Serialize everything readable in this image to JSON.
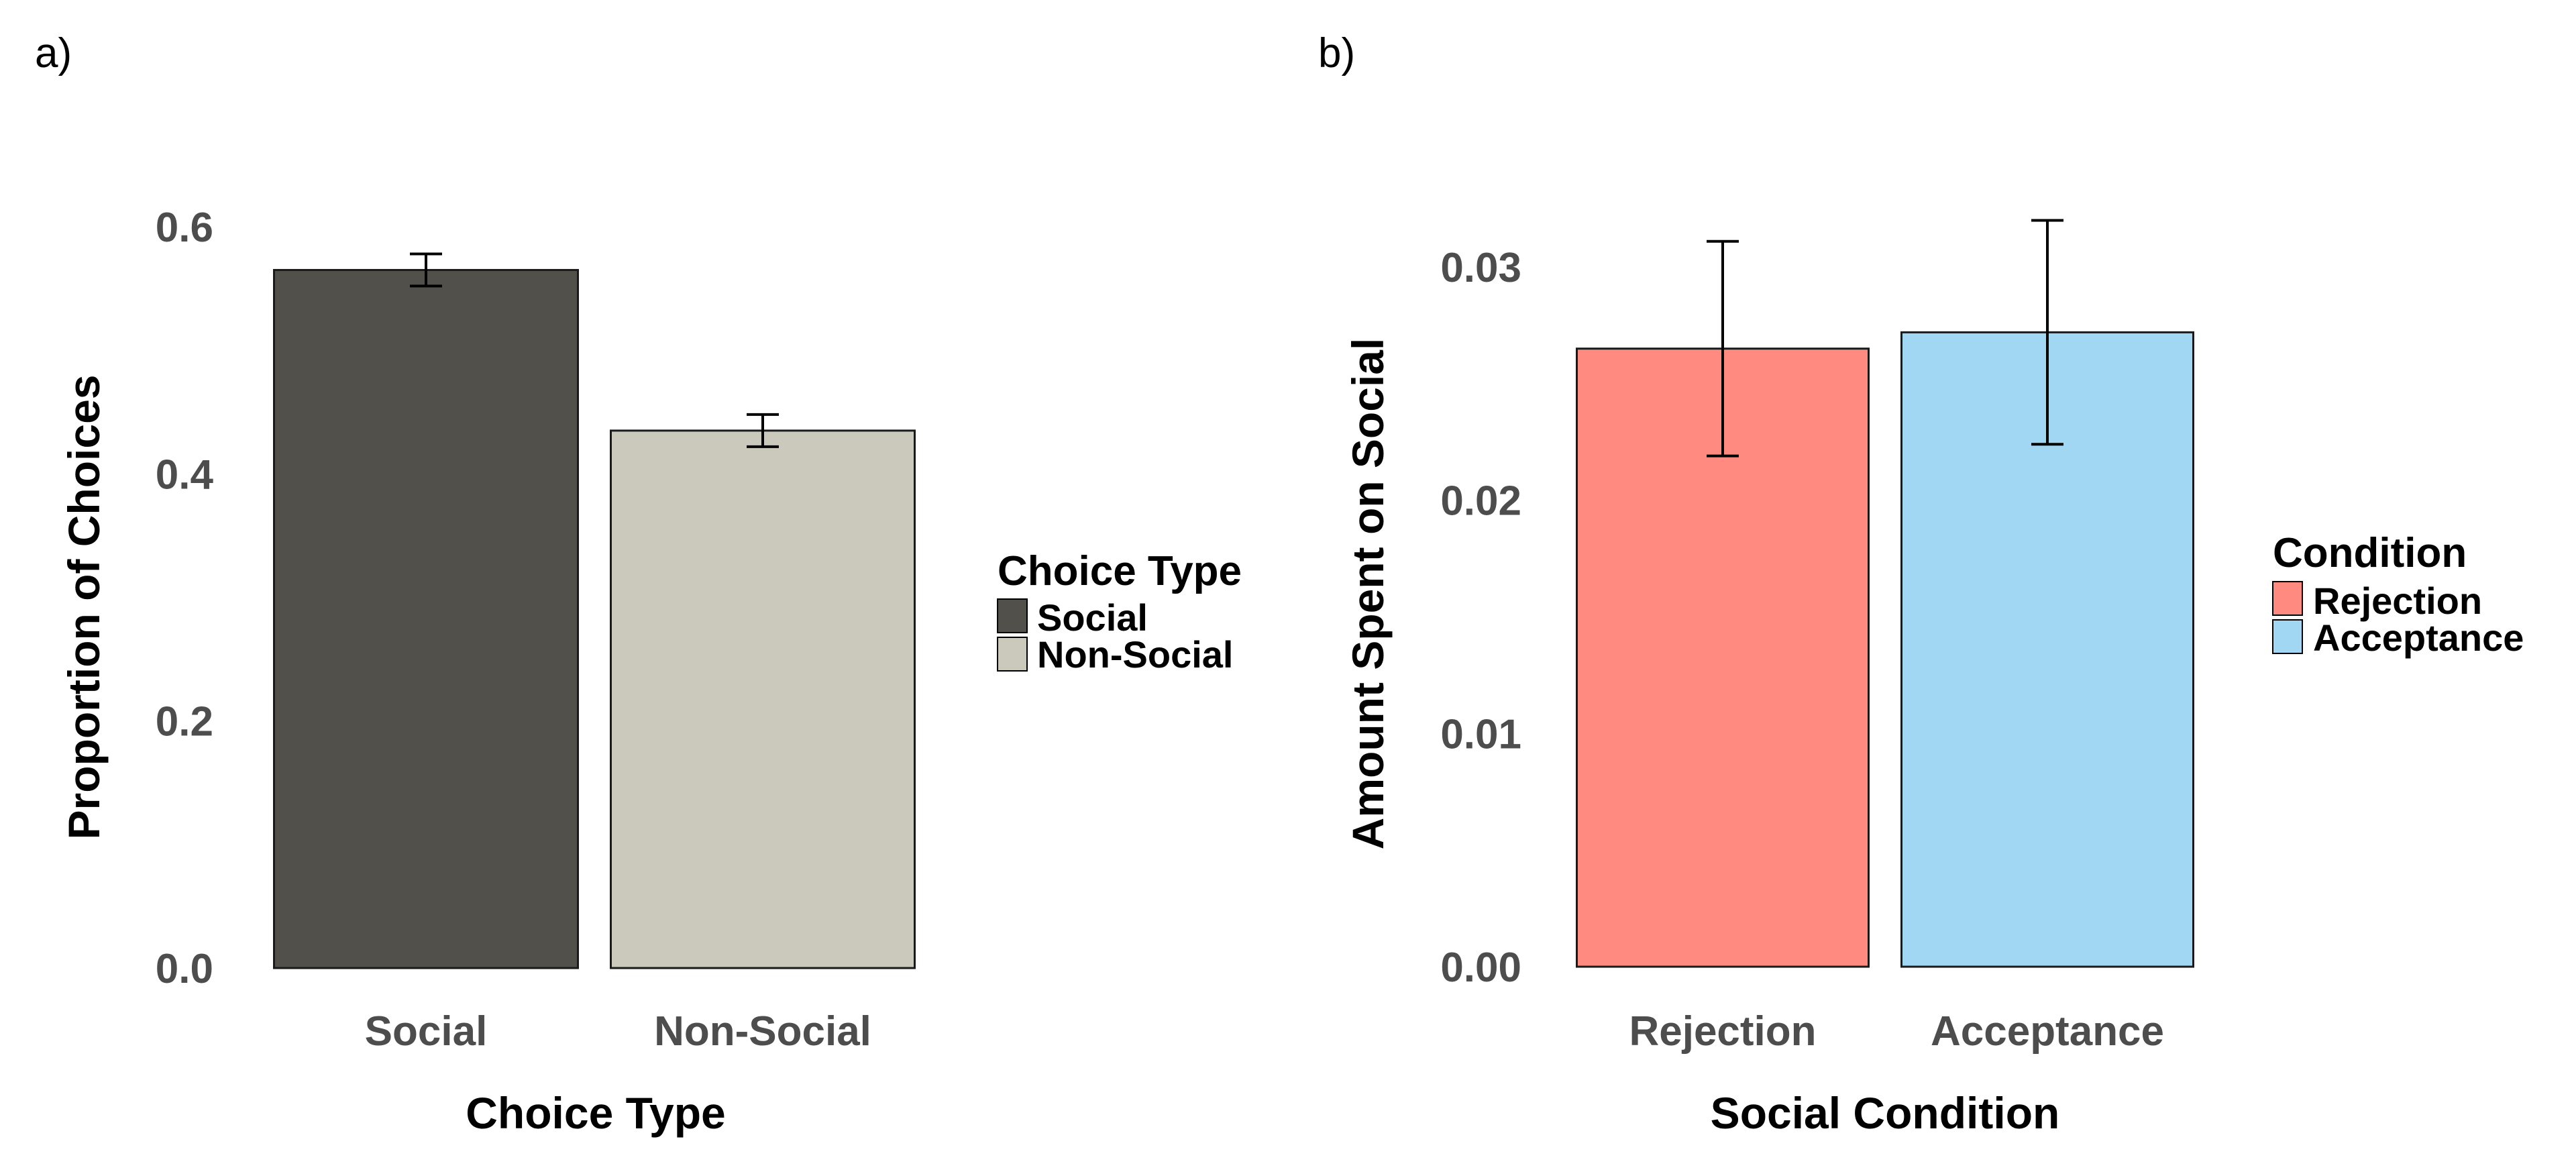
{
  "chart_data": [
    {
      "type": "bar",
      "panel_label": "a)",
      "categories": [
        "Social",
        "Non-Social"
      ],
      "values": [
        0.565,
        0.435
      ],
      "error": [
        0.013,
        0.013
      ],
      "colors": [
        "#52504a",
        "#cbc9bc"
      ],
      "xlabel": "Choice Type",
      "ylabel": "Proportion of Choices",
      "ylim": [
        0,
        0.6
      ],
      "yticks": [
        0.0,
        0.2,
        0.4,
        0.6
      ],
      "ytick_labels": [
        "0.0",
        "0.2",
        "0.4",
        "0.6"
      ],
      "legend": {
        "title": "Choice Type",
        "entries": [
          "Social",
          "Non-Social"
        ],
        "placement": "right"
      },
      "grid": false
    },
    {
      "type": "bar",
      "panel_label": "b)",
      "categories": [
        "Rejection",
        "Acceptance"
      ],
      "values": [
        0.0265,
        0.0272
      ],
      "error": [
        0.0046,
        0.0048
      ],
      "colors": [
        "#ff8a80",
        "#a1d7f2"
      ],
      "xlabel": "Social Condition",
      "ylabel": "Amount Spent on Social",
      "ylim": [
        0,
        0.03
      ],
      "yticks": [
        0.0,
        0.01,
        0.02,
        0.03
      ],
      "ytick_labels": [
        "0.00",
        "0.01",
        "0.02",
        "0.03"
      ],
      "legend": {
        "title": "Condition",
        "entries": [
          "Rejection",
          "Acceptance"
        ],
        "placement": "right"
      },
      "grid": false
    }
  ]
}
